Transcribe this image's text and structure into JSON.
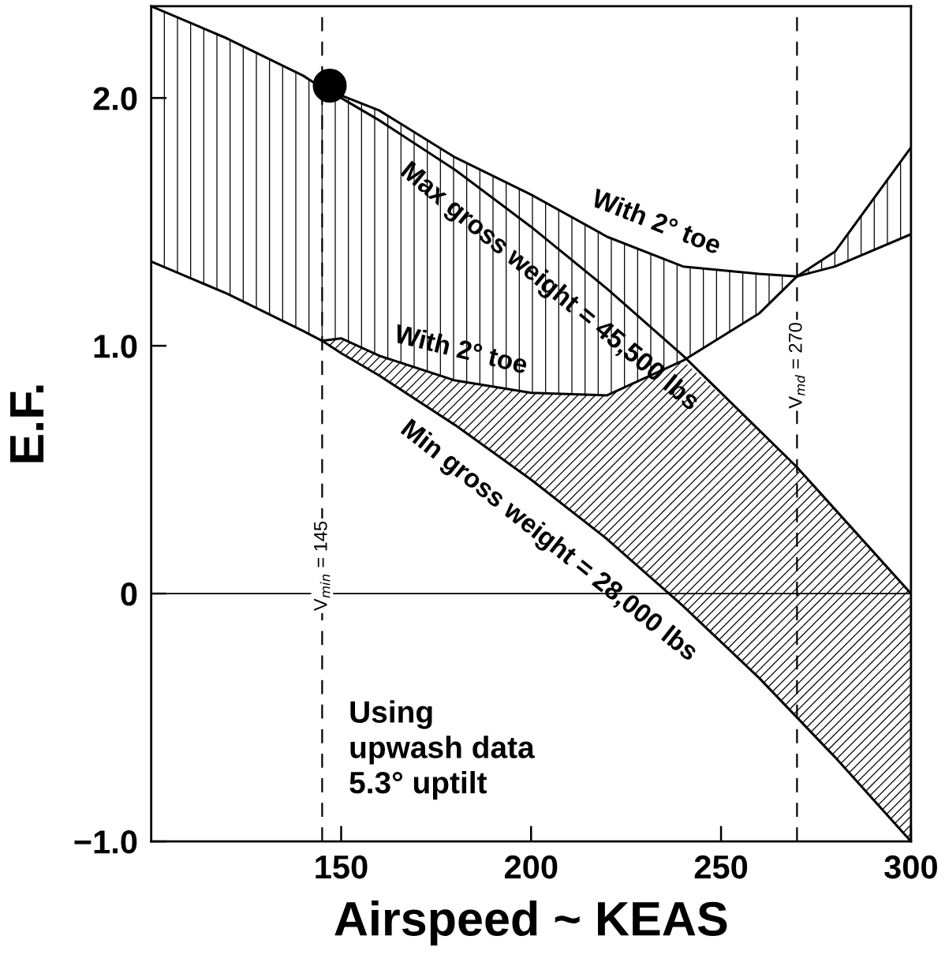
{
  "chart_data": {
    "type": "line",
    "xlabel": "Airspeed ~ KEAS",
    "ylabel": "E.F.",
    "x": [
      100,
      120,
      140,
      145,
      150,
      160,
      180,
      200,
      220,
      240,
      260,
      270,
      280,
      300
    ],
    "series": [
      {
        "name": "Max gross weight = 45,500 lbs",
        "color": "#000000",
        "values": [
          2.37,
          2.24,
          2.09,
          2.04,
          2.0,
          1.91,
          1.71,
          1.48,
          1.23,
          0.96,
          0.66,
          0.51,
          0.34,
          0.0
        ]
      },
      {
        "name": "With 2° toe",
        "color": "#000000",
        "values": [
          null,
          null,
          null,
          null,
          2.01,
          1.95,
          1.76,
          1.61,
          1.44,
          1.32,
          1.29,
          1.28,
          1.32,
          1.45
        ],
        "lower": [
          1.34,
          1.21,
          1.06,
          1.02,
          1.03,
          0.96,
          0.86,
          0.81,
          0.8,
          0.94,
          1.13,
          1.28,
          1.38,
          1.8
        ],
        "upper": [
          2.37,
          2.24,
          2.09,
          2.04,
          2.01,
          1.95,
          1.76,
          1.61,
          1.44,
          1.32,
          1.29,
          1.28,
          1.32,
          1.45
        ]
      },
      {
        "name": "With 2° toe",
        "color": "#000000",
        "values": [
          null,
          null,
          null,
          1.02,
          1.03,
          0.96,
          0.86,
          0.81,
          0.8,
          0.94,
          1.13,
          1.28,
          1.38,
          1.8
        ]
      },
      {
        "name": "Min gross weight = 28,000 lbs",
        "color": "#000000",
        "values": [
          1.34,
          1.21,
          1.06,
          1.02,
          0.97,
          0.88,
          0.68,
          0.46,
          0.22,
          -0.05,
          -0.34,
          -0.5,
          -0.66,
          -1.0
        ],
        "lower": [
          null,
          null,
          null,
          1.02,
          0.97,
          0.88,
          0.68,
          0.46,
          0.22,
          -0.05,
          -0.34,
          -0.5,
          -0.66,
          -1.0
        ],
        "upper": [
          null,
          null,
          null,
          1.02,
          1.03,
          0.96,
          0.86,
          0.81,
          0.8,
          0.94,
          0.66,
          0.51,
          0.34,
          0.0
        ]
      },
      {
        "type": "scatter",
        "marker": "circle",
        "color": "#000000",
        "x": [
          147
        ],
        "values": [
          2.05
        ]
      }
    ],
    "xlim": [
      100,
      300
    ],
    "ylim": [
      -1.0,
      2.37
    ],
    "xticks": [
      150,
      200,
      250,
      300
    ],
    "yticks": [
      {
        "value": -1.0,
        "label": "−1.0"
      },
      {
        "value": 0,
        "label": "0"
      },
      {
        "value": 1.0,
        "label": "1.0"
      },
      {
        "value": 2.0,
        "label": "2.0"
      }
    ],
    "ref_lines": [
      {
        "axis": "x",
        "value": 145,
        "label": "V$_{min}$ = 145",
        "line_style": "dashed"
      },
      {
        "axis": "x",
        "value": 270,
        "label": "V$_{md}$ = 270",
        "line_style": "dashed"
      },
      {
        "axis": "y",
        "value": 0,
        "label": null,
        "line_style": "solid"
      }
    ],
    "annotations": [
      "Using\nupwash data\n5.3° uptilt"
    ],
    "grid": false,
    "legend": false,
    "marker": "none",
    "line_style": "solid"
  }
}
